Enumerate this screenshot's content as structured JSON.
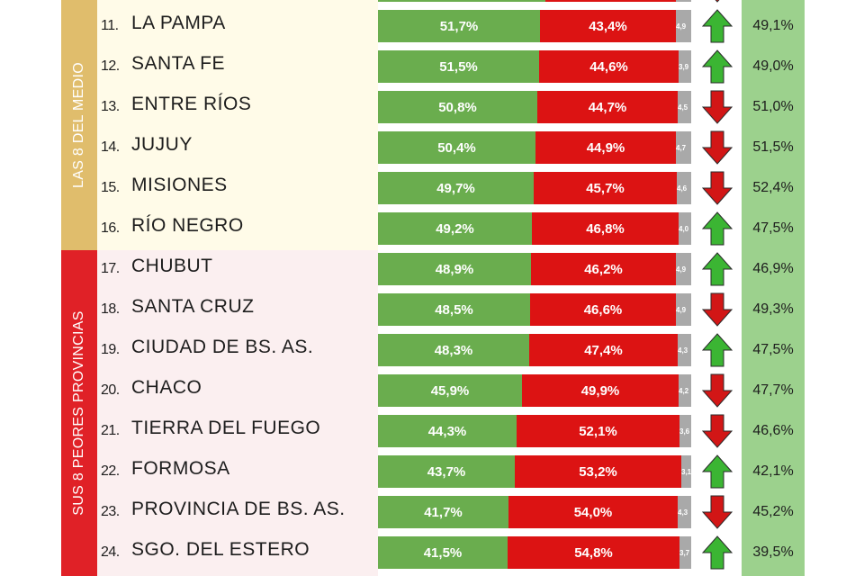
{
  "groups": [
    {
      "label": "LAS 8 DEL MEDIO"
    },
    {
      "label": "SUS 8 PEORES PROVINCIAS"
    }
  ],
  "colors": {
    "green": "#6aad4e",
    "red": "#dc1313",
    "other": "#a9a9a9",
    "arrow_up": "#3bb533",
    "arrow_down": "#d21616"
  },
  "chart_data": {
    "type": "bar",
    "stacked": true,
    "categories": [
      "LA PAMPA",
      "SANTA FE",
      "ENTRE RÍOS",
      "JUJUY",
      "MISIONES",
      "RÍO NEGRO",
      "CHUBUT",
      "SANTA CRUZ",
      "CIUDAD DE BS. AS.",
      "CHACO",
      "TIERRA DEL FUEGO",
      "FORMOSA",
      "PROVINCIA DE BS. AS.",
      "SGO. DEL ESTERO"
    ],
    "rows": [
      {
        "rank": "11.",
        "name": "LA PAMPA",
        "green": 51.7,
        "green_label": "51,7%",
        "red": 43.4,
        "red_label": "43,4%",
        "other": 4.9,
        "other_label": "4,9",
        "trend": "up",
        "prev": "49,1%"
      },
      {
        "rank": "12.",
        "name": "SANTA FE",
        "green": 51.5,
        "green_label": "51,5%",
        "red": 44.6,
        "red_label": "44,6%",
        "other": 3.9,
        "other_label": "3,9",
        "trend": "up",
        "prev": "49,0%"
      },
      {
        "rank": "13.",
        "name": "ENTRE RÍOS",
        "green": 50.8,
        "green_label": "50,8%",
        "red": 44.7,
        "red_label": "44,7%",
        "other": 4.5,
        "other_label": "4,5",
        "trend": "down",
        "prev": "51,0%"
      },
      {
        "rank": "14.",
        "name": "JUJUY",
        "green": 50.4,
        "green_label": "50,4%",
        "red": 44.9,
        "red_label": "44,9%",
        "other": 4.7,
        "other_label": "4,7",
        "trend": "down",
        "prev": "51,5%"
      },
      {
        "rank": "15.",
        "name": "MISIONES",
        "green": 49.7,
        "green_label": "49,7%",
        "red": 45.7,
        "red_label": "45,7%",
        "other": 4.6,
        "other_label": "4,6",
        "trend": "down",
        "prev": "52,4%"
      },
      {
        "rank": "16.",
        "name": "RÍO NEGRO",
        "green": 49.2,
        "green_label": "49,2%",
        "red": 46.8,
        "red_label": "46,8%",
        "other": 4.0,
        "other_label": "4,0",
        "trend": "up",
        "prev": "47,5%"
      },
      {
        "rank": "17.",
        "name": "CHUBUT",
        "green": 48.9,
        "green_label": "48,9%",
        "red": 46.2,
        "red_label": "46,2%",
        "other": 4.9,
        "other_label": "4,9",
        "trend": "up",
        "prev": "46,9%"
      },
      {
        "rank": "18.",
        "name": "SANTA CRUZ",
        "green": 48.5,
        "green_label": "48,5%",
        "red": 46.6,
        "red_label": "46,6%",
        "other": 4.9,
        "other_label": "4,9",
        "trend": "down",
        "prev": "49,3%"
      },
      {
        "rank": "19.",
        "name": "CIUDAD DE BS. AS.",
        "green": 48.3,
        "green_label": "48,3%",
        "red": 47.4,
        "red_label": "47,4%",
        "other": 4.3,
        "other_label": "4,3",
        "trend": "up",
        "prev": "47,5%"
      },
      {
        "rank": "20.",
        "name": "CHACO",
        "green": 45.9,
        "green_label": "45,9%",
        "red": 49.9,
        "red_label": "49,9%",
        "other": 4.2,
        "other_label": "4,2",
        "trend": "down",
        "prev": "47,7%"
      },
      {
        "rank": "21.",
        "name": "TIERRA DEL FUEGO",
        "green": 44.3,
        "green_label": "44,3%",
        "red": 52.1,
        "red_label": "52,1%",
        "other": 3.6,
        "other_label": "3,6",
        "trend": "down",
        "prev": "46,6%"
      },
      {
        "rank": "22.",
        "name": "FORMOSA",
        "green": 43.7,
        "green_label": "43,7%",
        "red": 53.2,
        "red_label": "53,2%",
        "other": 3.1,
        "other_label": "3,1",
        "trend": "up",
        "prev": "42,1%"
      },
      {
        "rank": "23.",
        "name": "PROVINCIA DE BS. AS.",
        "green": 41.7,
        "green_label": "41,7%",
        "red": 54.0,
        "red_label": "54,0%",
        "other": 4.3,
        "other_label": "4,3",
        "trend": "down",
        "prev": "45,2%"
      },
      {
        "rank": "24.",
        "name": "SGO. DEL ESTERO",
        "green": 41.5,
        "green_label": "41,5%",
        "red": 54.8,
        "red_label": "54,8%",
        "other": 3.7,
        "other_label": "3,7",
        "trend": "up",
        "prev": "39,5%"
      }
    ],
    "partial_top_row": {
      "trend": "down"
    }
  }
}
